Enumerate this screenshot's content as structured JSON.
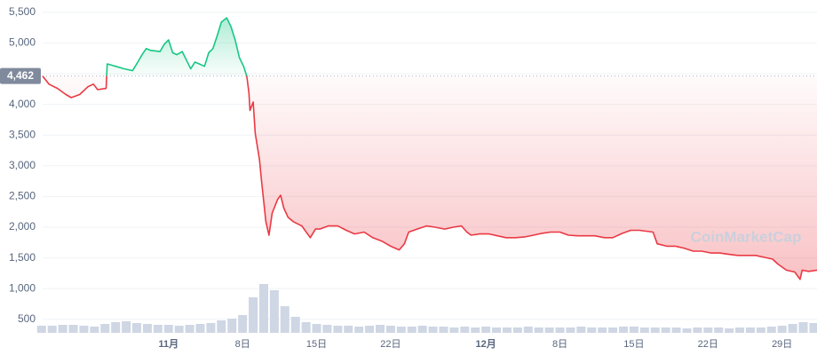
{
  "chart_data": {
    "type": "line",
    "x": [
      -11.9,
      -11.3,
      -10.5,
      -9.7,
      -9.2,
      -8.4,
      -7.6,
      -7.1,
      -6.7,
      -5.9,
      -5.8,
      -5.0,
      -4.2,
      -3.4,
      -2.9,
      -2.5,
      -2.1,
      -1.7,
      -0.8,
      -0.4,
      0,
      0.4,
      0.8,
      1.3,
      1.7,
      2.1,
      2.5,
      2.9,
      3.4,
      3.8,
      4.2,
      4.6,
      5.0,
      5.5,
      5.9,
      6.3,
      6.7,
      7.1,
      7.4,
      7.6,
      7.7,
      8.0,
      8.2,
      8.6,
      8.8,
      9.2,
      9.5,
      9.8,
      10.3,
      10.6,
      10.9,
      11.3,
      11.8,
      12.6,
      13.4,
      13.9,
      14.3,
      15.1,
      16.0,
      16.8,
      17.6,
      18.5,
      19.3,
      20.2,
      21.0,
      21.8,
      22.3,
      22.7,
      23.5,
      24.4,
      25.2,
      26.1,
      26.9,
      27.7,
      28.2,
      28.6,
      29.4,
      30.3,
      31.1,
      31.9,
      32.8,
      33.6,
      34.5,
      35.3,
      36.1,
      37.0,
      37.8,
      38.7,
      39.5,
      40.3,
      41.2,
      42.0,
      42.9,
      43.7,
      44.5,
      45.8,
      46.2,
      47.1,
      47.9,
      48.7,
      49.6,
      50.4,
      51.3,
      52.1,
      52.9,
      53.8,
      54.6,
      55.5,
      56.3,
      57.1,
      57.6,
      58.4,
      59.2,
      59.7,
      59.9,
      60.5,
      61.3
    ],
    "values": [
      4460,
      4330,
      4260,
      4160,
      4110,
      4160,
      4290,
      4330,
      4240,
      4260,
      4660,
      4620,
      4580,
      4550,
      4690,
      4810,
      4910,
      4880,
      4860,
      4980,
      5050,
      4840,
      4810,
      4860,
      4720,
      4580,
      4690,
      4660,
      4620,
      4840,
      4910,
      5120,
      5340,
      5410,
      5270,
      5050,
      4760,
      4620,
      4460,
      4190,
      3900,
      4040,
      3530,
      3100,
      2740,
      2090,
      1870,
      2230,
      2450,
      2520,
      2310,
      2160,
      2090,
      2020,
      1830,
      1970,
      1970,
      2020,
      2020,
      1950,
      1890,
      1920,
      1830,
      1770,
      1690,
      1630,
      1730,
      1920,
      1970,
      2020,
      2000,
      1970,
      2000,
      2020,
      1920,
      1870,
      1890,
      1890,
      1860,
      1830,
      1830,
      1840,
      1870,
      1900,
      1920,
      1920,
      1870,
      1860,
      1860,
      1860,
      1830,
      1830,
      1900,
      1950,
      1950,
      1920,
      1730,
      1690,
      1690,
      1660,
      1610,
      1610,
      1580,
      1580,
      1560,
      1540,
      1540,
      1540,
      1510,
      1480,
      1400,
      1300,
      1270,
      1150,
      1300,
      1280,
      1300
    ],
    "up_color": "#16c784",
    "down_color": "#ea3943",
    "reference": {
      "value": 4462,
      "label": "4,462"
    },
    "xlim": [
      -11.9,
      61.3
    ],
    "xticks": [
      {
        "value": 7,
        "label": "8日"
      },
      {
        "value": 14,
        "label": "15日"
      },
      {
        "value": 21,
        "label": "22日"
      },
      {
        "value": 37,
        "label": "8日"
      },
      {
        "value": 44,
        "label": "15日"
      },
      {
        "value": 51,
        "label": "22日"
      },
      {
        "value": 58,
        "label": "29日"
      }
    ],
    "month_ticks": [
      {
        "value": 0,
        "label": "11月"
      },
      {
        "value": 30,
        "label": "12月"
      }
    ],
    "ylim": [
      280,
      5700
    ],
    "yticks": [
      500,
      {
        "value": 1000,
        "label": "1,000"
      },
      {
        "value": 1500,
        "label": "1,500"
      },
      {
        "value": 2000,
        "label": "2,000"
      },
      {
        "value": 2500,
        "label": "2,500"
      },
      {
        "value": 3000,
        "label": "3,000"
      },
      {
        "value": 3500,
        "label": "3,500"
      },
      {
        "value": 4000,
        "label": "4,000"
      },
      {
        "value": 4500,
        "label": "4,500"
      },
      {
        "value": 5000,
        "label": "5,000"
      },
      {
        "value": 5500,
        "label": "5,500"
      }
    ],
    "grid": true,
    "volume": {
      "color": "#cfd6e4",
      "lim": [
        0,
        100
      ],
      "x": [
        -12,
        -11,
        -10,
        -9,
        -8,
        -7,
        -6,
        -5,
        -4,
        -3,
        -2,
        -1,
        0,
        1,
        2,
        3,
        4,
        5,
        6,
        7,
        8,
        9,
        10,
        11,
        12,
        13,
        14,
        15,
        16,
        17,
        18,
        19,
        20,
        21,
        22,
        23,
        24,
        25,
        26,
        27,
        28,
        29,
        30,
        31,
        32,
        33,
        34,
        35,
        36,
        37,
        38,
        39,
        40,
        41,
        42,
        43,
        44,
        45,
        46,
        47,
        48,
        49,
        50,
        51,
        52,
        53,
        54,
        55,
        56,
        57,
        58,
        59,
        60,
        61
      ],
      "values": [
        8,
        8,
        9,
        9,
        8,
        7,
        10,
        12,
        13,
        11,
        10,
        9,
        9,
        8,
        9,
        10,
        11,
        14,
        16,
        20,
        40,
        55,
        48,
        30,
        18,
        12,
        10,
        9,
        8,
        8,
        7,
        8,
        9,
        8,
        7,
        7,
        8,
        7,
        7,
        6,
        7,
        6,
        7,
        6,
        6,
        6,
        7,
        6,
        6,
        6,
        6,
        7,
        6,
        6,
        6,
        7,
        7,
        6,
        6,
        6,
        6,
        5,
        6,
        6,
        6,
        5,
        6,
        6,
        6,
        7,
        8,
        10,
        12,
        11
      ]
    },
    "watermark": "CoinMarketCap"
  }
}
